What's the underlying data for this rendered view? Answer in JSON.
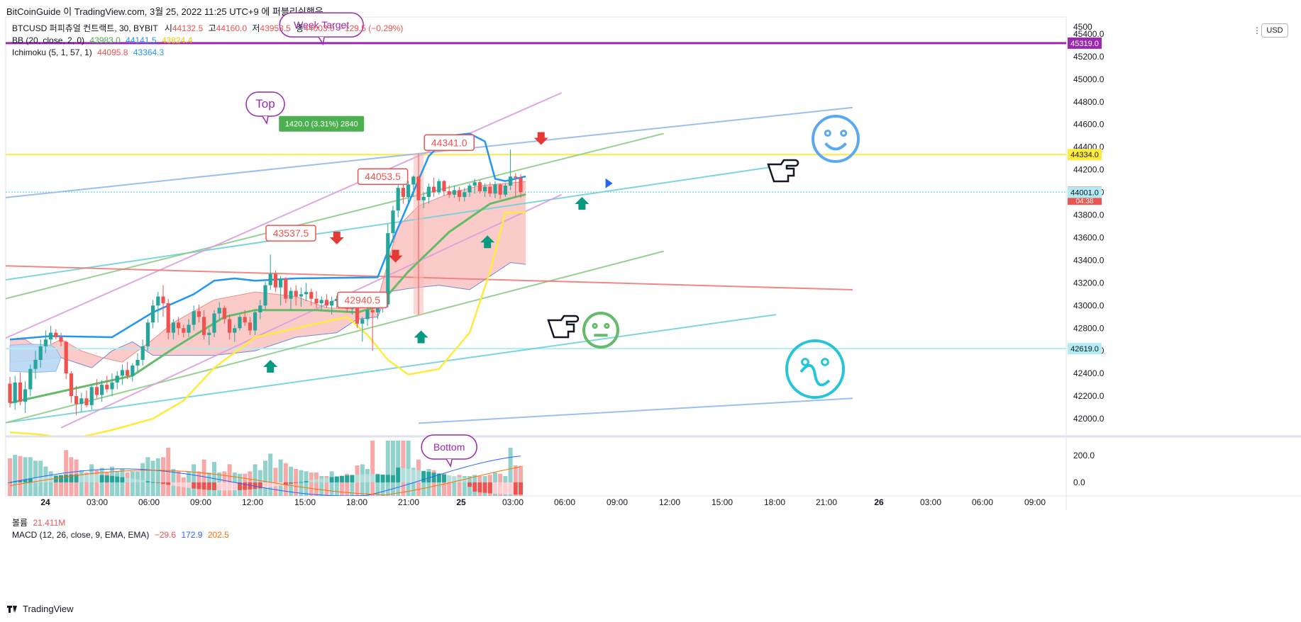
{
  "header": {
    "caption": "BitCoinGuide 이 TradingView.com, 3월 25, 2022 11:25 UTC+9 에 퍼블리쉬했음"
  },
  "legend": {
    "symbol": "BTCUSD 퍼피츄얼 컨트랙트, 30, BYBIT",
    "open_label": "시",
    "open": "44132.5",
    "high_label": "고",
    "high": "44160.0",
    "low_label": "저",
    "low": "43953.5",
    "close_label": "종",
    "close": "44003.0",
    "change": "−129.5 (−0.29%)",
    "bb_label": "BB (20, close, 2, 0)",
    "bb_values": [
      "43983.0",
      "44141.5",
      "43824.4"
    ],
    "ichimoku_label": "Ichimoku (5, 1, 57, 1)",
    "ichimoku_values": [
      "44095.8",
      "43364.3"
    ],
    "volume_label": "볼륨",
    "volume": "21.411M",
    "macd_label": "MACD (12, 26, close, 9, EMA, EMA)",
    "macd_values": [
      "−29.6",
      "172.9",
      "202.5"
    ]
  },
  "currency": "USD",
  "footer": {
    "brand": "TradingView"
  },
  "colors": {
    "up": "#26a69a",
    "down": "#ef5350",
    "bb_basis": "#4caf50",
    "bb_upper": "#2196f3",
    "bb_lower": "#ffeb3b",
    "cloud": "#f8b9b6",
    "purple": "#9c27b0"
  },
  "chart_data": {
    "type": "candlestick",
    "interval_minutes": 30,
    "y_axis": {
      "ticks": [
        "45400.0",
        "45200.0",
        "45000.0",
        "44800.0",
        "44600.0",
        "44400.0",
        "44200.0",
        "44000.0",
        "43800.0",
        "43600.0",
        "43400.0",
        "43200.0",
        "43000.0",
        "42800.0",
        "42600.0",
        "42400.0",
        "42200.0",
        "42000.0"
      ],
      "top_partial": "4500",
      "ylim": [
        41850,
        45550
      ]
    },
    "x_axis": {
      "ticks": [
        "24",
        "03:00",
        "06:00",
        "09:00",
        "12:00",
        "15:00",
        "18:00",
        "21:00",
        "25",
        "03:00",
        "06:00",
        "09:00",
        "12:00",
        "15:00",
        "18:00",
        "21:00",
        "26",
        "03:00",
        "06:00",
        "09:00"
      ],
      "bold": [
        "24",
        "25",
        "26"
      ]
    },
    "price_labels": [
      {
        "text": "45319.0",
        "value": 45319.0,
        "color": "#9c27b0",
        "fg": "#ffffff"
      },
      {
        "text": "44334.0",
        "value": 44334.0,
        "color": "#ffeb3b",
        "fg": "#131722"
      },
      {
        "text": "44003.0",
        "value": 44003.0,
        "color": "#ef5350",
        "fg": "#ffffff",
        "sub": "04:38"
      },
      {
        "text": "44001.0",
        "value": 44001.0,
        "color": "#b2ebf2",
        "fg": "#131722"
      },
      {
        "text": "42619.0",
        "value": 42619.0,
        "color": "#b2ebf2",
        "fg": "#131722"
      }
    ],
    "horizontal_lines": [
      {
        "value": 45319.0,
        "color": "#9c27b0",
        "width": 3
      },
      {
        "value": 44334.0,
        "color": "#ffeb3b",
        "width": 2
      },
      {
        "value": 44003.0,
        "color": "#4dd0e1",
        "width": 1,
        "dashed": true
      },
      {
        "value": 42619.0,
        "color": "#b2ebf2",
        "width": 2
      }
    ],
    "candles": [
      [
        42310,
        42370,
        42100,
        42140
      ],
      [
        42140,
        42380,
        42080,
        42320
      ],
      [
        42320,
        42410,
        42120,
        42150
      ],
      [
        42150,
        42330,
        42050,
        42260
      ],
      [
        42260,
        42480,
        42200,
        42440
      ],
      [
        42440,
        42600,
        42350,
        42520
      ],
      [
        42520,
        42700,
        42450,
        42640
      ],
      [
        42640,
        42780,
        42580,
        42700
      ],
      [
        42700,
        42820,
        42660,
        42760
      ],
      [
        42760,
        42790,
        42700,
        42720
      ],
      [
        42720,
        42760,
        42640,
        42680
      ],
      [
        42680,
        42690,
        42350,
        42400
      ],
      [
        42400,
        42420,
        42140,
        42200
      ],
      [
        42200,
        42290,
        42030,
        42130
      ],
      [
        42130,
        42230,
        42060,
        42180
      ],
      [
        42180,
        42250,
        42100,
        42120
      ],
      [
        42120,
        42300,
        42080,
        42280
      ],
      [
        42280,
        42350,
        42180,
        42210
      ],
      [
        42210,
        42340,
        42150,
        42300
      ],
      [
        42300,
        42380,
        42230,
        42260
      ],
      [
        42260,
        42400,
        42200,
        42320
      ],
      [
        42320,
        42420,
        42260,
        42380
      ],
      [
        42380,
        42480,
        42300,
        42430
      ],
      [
        42430,
        42500,
        42350,
        42380
      ],
      [
        42380,
        42490,
        42330,
        42470
      ],
      [
        42470,
        42580,
        42420,
        42520
      ],
      [
        42520,
        42700,
        42470,
        42640
      ],
      [
        42640,
        42880,
        42600,
        42850
      ],
      [
        42850,
        43050,
        42800,
        43000
      ],
      [
        43000,
        43120,
        42850,
        43080
      ],
      [
        43080,
        43180,
        42900,
        43020
      ],
      [
        43020,
        43060,
        42700,
        42760
      ],
      [
        42760,
        42880,
        42700,
        42850
      ],
      [
        42850,
        42900,
        42740,
        42800
      ],
      [
        42800,
        42830,
        42720,
        42760
      ],
      [
        42760,
        42880,
        42720,
        42830
      ],
      [
        42830,
        43000,
        42780,
        42950
      ],
      [
        42950,
        43010,
        42850,
        42900
      ],
      [
        42900,
        42960,
        42700,
        42740
      ],
      [
        42740,
        42800,
        42650,
        42760
      ],
      [
        42760,
        42960,
        42720,
        42930
      ],
      [
        42930,
        43030,
        42880,
        42980
      ],
      [
        42980,
        43000,
        42840,
        42880
      ],
      [
        42880,
        42920,
        42700,
        42760
      ],
      [
        42760,
        42830,
        42680,
        42800
      ],
      [
        42800,
        42920,
        42780,
        42900
      ],
      [
        42900,
        42960,
        42820,
        42850
      ],
      [
        42850,
        42900,
        42740,
        42780
      ],
      [
        42780,
        42960,
        42740,
        42940
      ],
      [
        42940,
        43050,
        42880,
        43000
      ],
      [
        43000,
        43210,
        42960,
        43180
      ],
      [
        43180,
        43450,
        43140,
        43280
      ],
      [
        43280,
        43310,
        43120,
        43160
      ],
      [
        43160,
        43260,
        43000,
        43240
      ],
      [
        43240,
        43250,
        43020,
        43060
      ],
      [
        43060,
        43160,
        42960,
        43130
      ],
      [
        43130,
        43180,
        43000,
        43080
      ],
      [
        43080,
        43160,
        42990,
        43100
      ],
      [
        43100,
        43200,
        43040,
        43120
      ],
      [
        43120,
        43150,
        43000,
        43060
      ],
      [
        43060,
        43130,
        42980,
        43020
      ],
      [
        43020,
        43080,
        42960,
        43050
      ],
      [
        43050,
        43100,
        42980,
        43000
      ],
      [
        43000,
        43080,
        42920,
        43040
      ],
      [
        43040,
        43090,
        42980,
        43060
      ],
      [
        43060,
        43110,
        43000,
        43030
      ],
      [
        43030,
        43080,
        42940,
        42970
      ],
      [
        42970,
        43040,
        42920,
        42990
      ],
      [
        42990,
        43010,
        42800,
        42840
      ],
      [
        42840,
        42900,
        42680,
        42880
      ],
      [
        42880,
        43000,
        42820,
        42960
      ],
      [
        42960,
        43110,
        42600,
        42940
      ],
      [
        42940,
        43020,
        42880,
        42990
      ],
      [
        42990,
        43060,
        42940,
        43010
      ],
      [
        43010,
        43720,
        42980,
        43640
      ],
      [
        43640,
        43880,
        43560,
        43840
      ],
      [
        43840,
        44080,
        43780,
        44040
      ],
      [
        44040,
        44120,
        43900,
        43960
      ],
      [
        43960,
        44100,
        43900,
        44070
      ],
      [
        44070,
        44150,
        43960,
        44140
      ],
      [
        44140,
        44160,
        43900,
        43930
      ],
      [
        43930,
        44000,
        43860,
        43960
      ],
      [
        43960,
        44080,
        43900,
        44050
      ],
      [
        44050,
        44130,
        43960,
        44000
      ],
      [
        44000,
        44120,
        43980,
        44100
      ],
      [
        44100,
        44110,
        43970,
        44010
      ],
      [
        44010,
        44060,
        43950,
        43980
      ],
      [
        43980,
        44060,
        43950,
        44020
      ],
      [
        44020,
        44050,
        43920,
        43960
      ],
      [
        43960,
        44040,
        43920,
        44000
      ],
      [
        44000,
        44080,
        43960,
        44060
      ],
      [
        44060,
        44120,
        43990,
        44090
      ],
      [
        44090,
        44110,
        43990,
        44010
      ],
      [
        44010,
        44080,
        43960,
        44050
      ],
      [
        44050,
        44090,
        43960,
        43990
      ],
      [
        43990,
        44100,
        43950,
        44070
      ],
      [
        44070,
        44080,
        43940,
        43980
      ],
      [
        43980,
        44080,
        43960,
        44060
      ],
      [
        44060,
        44380,
        44020,
        44140
      ],
      [
        44140,
        44170,
        43960,
        44130
      ],
      [
        44130,
        44160,
        43953.5,
        44003
      ]
    ],
    "bb_basis": [
      [
        0,
        42140
      ],
      [
        12,
        42260
      ],
      [
        24,
        42380
      ],
      [
        32,
        42620
      ],
      [
        42,
        42900
      ],
      [
        48,
        42960
      ],
      [
        60,
        42960
      ],
      [
        68,
        42940
      ],
      [
        72,
        42990
      ],
      [
        78,
        43300
      ],
      [
        86,
        43650
      ],
      [
        94,
        43900
      ],
      [
        101,
        43983
      ]
    ],
    "bb_upper": [
      [
        0,
        42700
      ],
      [
        8,
        42730
      ],
      [
        20,
        42720
      ],
      [
        28,
        42940
      ],
      [
        36,
        43100
      ],
      [
        40,
        43220
      ],
      [
        44,
        43240
      ],
      [
        48,
        43220
      ],
      [
        56,
        43240
      ],
      [
        72,
        43250
      ],
      [
        74,
        43480
      ],
      [
        78,
        43900
      ],
      [
        82,
        44320
      ],
      [
        86,
        44500
      ],
      [
        90,
        44520
      ],
      [
        93,
        44450
      ],
      [
        95,
        44120
      ],
      [
        97,
        44100
      ],
      [
        101,
        44141.5
      ]
    ],
    "bb_lower": [
      [
        0,
        41880
      ],
      [
        6,
        41860
      ],
      [
        12,
        41820
      ],
      [
        20,
        41900
      ],
      [
        28,
        42000
      ],
      [
        34,
        42160
      ],
      [
        40,
        42450
      ],
      [
        48,
        42720
      ],
      [
        56,
        42800
      ],
      [
        62,
        42860
      ],
      [
        66,
        42900
      ],
      [
        70,
        42740
      ],
      [
        74,
        42520
      ],
      [
        78,
        42390
      ],
      [
        84,
        42440
      ],
      [
        90,
        42760
      ],
      [
        94,
        43300
      ],
      [
        97,
        43820
      ],
      [
        101,
        43824.4
      ]
    ],
    "cloud_upper": [
      [
        0,
        42700
      ],
      [
        3,
        42700
      ],
      [
        6,
        42610
      ],
      [
        10,
        42700
      ],
      [
        14,
        42600
      ],
      [
        18,
        42540
      ],
      [
        22,
        42500
      ],
      [
        28,
        42700
      ],
      [
        32,
        42850
      ],
      [
        40,
        43050
      ],
      [
        48,
        43120
      ],
      [
        56,
        43080
      ],
      [
        62,
        42980
      ],
      [
        68,
        42970
      ],
      [
        72,
        43050
      ],
      [
        76,
        43700
      ],
      [
        80,
        43880
      ],
      [
        86,
        43990
      ],
      [
        92,
        44060
      ],
      [
        101,
        44095.8
      ]
    ],
    "cloud_lower": [
      [
        0,
        42500
      ],
      [
        6,
        42520
      ],
      [
        10,
        42540
      ],
      [
        16,
        42450
      ],
      [
        20,
        42600
      ],
      [
        24,
        42680
      ],
      [
        28,
        42560
      ],
      [
        40,
        42560
      ],
      [
        48,
        42600
      ],
      [
        56,
        42720
      ],
      [
        64,
        42760
      ],
      [
        68,
        42880
      ],
      [
        72,
        42900
      ],
      [
        74,
        43120
      ],
      [
        78,
        43150
      ],
      [
        84,
        43180
      ],
      [
        90,
        43140
      ],
      [
        94,
        43260
      ],
      [
        98,
        43380
      ],
      [
        101,
        43364.3
      ]
    ],
    "kumo_blue": [
      [
        0,
        42650
      ],
      [
        4,
        42660
      ],
      [
        8,
        42650
      ],
      [
        9,
        42620
      ],
      [
        10,
        42540
      ],
      [
        9,
        42420
      ],
      [
        5,
        42410
      ],
      [
        0,
        42420
      ]
    ],
    "trend_lines": [
      {
        "color": "#90b8f0",
        "from": [
          -8,
          43920
        ],
        "to": [
          165,
          44750
        ],
        "width": 2
      },
      {
        "color": "#90b8f0",
        "from": [
          80,
          41960
        ],
        "to": [
          165,
          42180
        ],
        "width": 2
      },
      {
        "color": "#6fd0dc",
        "from": [
          -8,
          43180
        ],
        "to": [
          150,
          44230
        ],
        "width": 2
      },
      {
        "color": "#6fd0dc",
        "from": [
          -8,
          41920
        ],
        "to": [
          150,
          42920
        ],
        "width": 2
      },
      {
        "color": "#8ccc8a",
        "from": [
          -8,
          42980
        ],
        "to": [
          128,
          44520
        ],
        "width": 2
      },
      {
        "color": "#8ccc8a",
        "from": [
          -8,
          41880
        ],
        "to": [
          128,
          43480
        ],
        "width": 2
      },
      {
        "color": "#d9a0dc",
        "from": [
          -8,
          42570
        ],
        "to": [
          108,
          44880
        ],
        "width": 2
      },
      {
        "color": "#d9a0dc",
        "from": [
          10,
          41920
        ],
        "to": [
          108,
          43980
        ],
        "width": 2
      },
      {
        "color": "#ef7a7a",
        "from": [
          -8,
          43360
        ],
        "to": [
          165,
          43140
        ],
        "width": 2
      }
    ],
    "annotations": [
      {
        "text": "Week Target",
        "type": "bubble",
        "x": 61,
        "y": 45480,
        "color": "#9c27b0"
      },
      {
        "text": "Top",
        "type": "bubble",
        "x": 50,
        "y": 44780,
        "color": "#9c27b0"
      },
      {
        "text": "Bottom",
        "type": "bubble",
        "x": 86,
        "y": 41750,
        "color": "#9c27b0"
      },
      {
        "text": "1420.0 (3.31%) 2840",
        "type": "measure",
        "x": 61,
        "y": 44600
      },
      {
        "text": "43537.5",
        "type": "price_callout",
        "x": 55,
        "y": 43640
      },
      {
        "text": "44053.5",
        "type": "price_callout",
        "x": 73,
        "y": 44140
      },
      {
        "text": "44341.0",
        "type": "price_callout",
        "x": 86,
        "y": 44440
      },
      {
        "text": "42940.5",
        "type": "price_callout",
        "x": 69,
        "y": 43050
      }
    ],
    "macd": {
      "ticks": [
        "200.0",
        "0.0"
      ],
      "ylim": [
        -100,
        330
      ]
    }
  }
}
